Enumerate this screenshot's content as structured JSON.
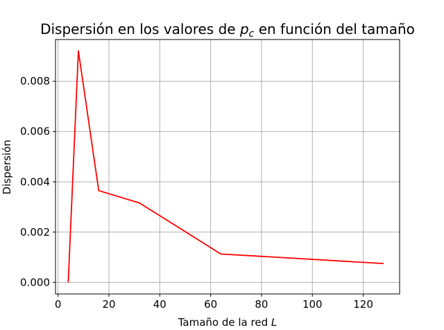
{
  "chart_data": {
    "type": "line",
    "title": "Dispersión en los valores de",
    "title_math_var": "p",
    "title_math_sub": "c",
    "title_suffix": "en función del tamaño",
    "xlabel": "Tamaño de la red",
    "xlabel_math_var": "L",
    "ylabel": "Dispersión",
    "xlim": [
      -1,
      134.3
    ],
    "ylim": [
      -0.00046,
      0.00966
    ],
    "xticks": [
      0,
      20,
      40,
      60,
      80,
      100,
      120
    ],
    "xtick_labels": [
      "0",
      "20",
      "40",
      "60",
      "80",
      "100",
      "120"
    ],
    "yticks": [
      0.0,
      0.002,
      0.004,
      0.006,
      0.008
    ],
    "ytick_labels": [
      "0.000",
      "0.002",
      "0.004",
      "0.006",
      "0.008"
    ],
    "grid": true,
    "series": [
      {
        "color": "#ff0000",
        "x": [
          4,
          8,
          16,
          32,
          64,
          128
        ],
        "y": [
          0.0,
          0.00921,
          0.00365,
          0.00316,
          0.00113,
          0.00075
        ]
      }
    ]
  }
}
